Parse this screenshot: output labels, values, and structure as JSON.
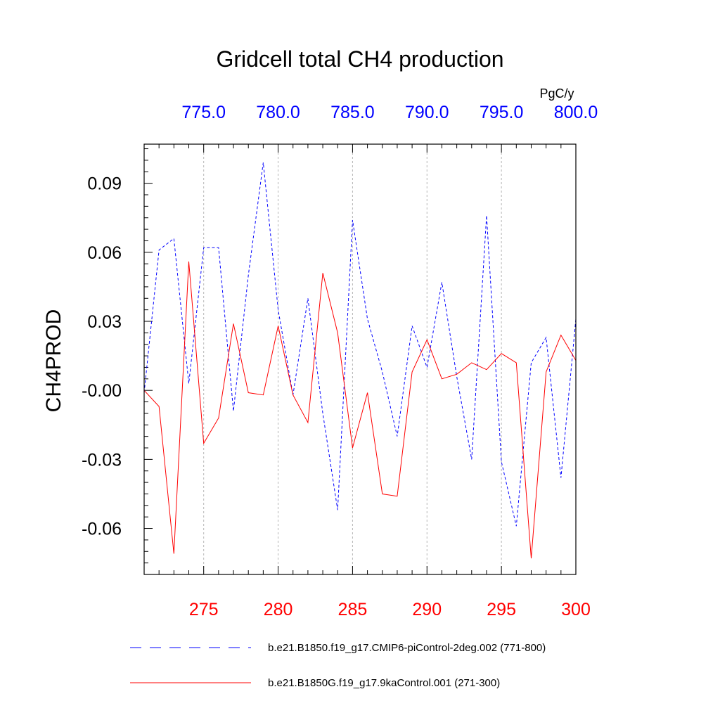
{
  "chart_data": {
    "type": "line",
    "title": "Gridcell total CH4 production",
    "ylabel": "CH4PROD",
    "units": "PgC/y",
    "ylim": [
      -0.08,
      0.107
    ],
    "y_ticks": [
      0.09,
      0.06,
      0.03,
      0.0,
      -0.03,
      -0.06
    ],
    "y_tick_labels": [
      "0.09",
      "0.06",
      "0.03",
      "-0.00",
      "-0.03",
      "-0.06"
    ],
    "y_minor_step": 0.005,
    "bottom_axis": {
      "xlim": [
        271,
        300
      ],
      "ticks": [
        275,
        280,
        285,
        290,
        295,
        300
      ],
      "tick_labels": [
        "275",
        "280",
        "285",
        "290",
        "295",
        "300"
      ],
      "color": "#ff0000"
    },
    "top_axis": {
      "xlim": [
        771,
        800
      ],
      "ticks": [
        775,
        780,
        785,
        790,
        795,
        800
      ],
      "tick_labels": [
        "775.0",
        "780.0",
        "785.0",
        "790.0",
        "795.0",
        "800.0"
      ],
      "color": "#0000ff"
    },
    "grid": "vertical dashed at major ticks",
    "series": [
      {
        "name": "b.e21.B1850.f19_g17.CMIP6-piControl-2deg.002 (771-800)",
        "axis": "top",
        "color": "#0000ff",
        "style": "dashed",
        "x": [
          771,
          772,
          773,
          774,
          775,
          776,
          777,
          778,
          779,
          780,
          781,
          782,
          783,
          784,
          785,
          786,
          787,
          788,
          789,
          790,
          791,
          792,
          793,
          794,
          795,
          796,
          797,
          798,
          799,
          800
        ],
        "values": [
          -0.001,
          0.061,
          0.066,
          0.003,
          0.062,
          0.062,
          -0.009,
          0.05,
          0.099,
          0.035,
          -0.002,
          0.04,
          -0.01,
          -0.052,
          0.074,
          0.031,
          0.008,
          -0.02,
          0.028,
          0.01,
          0.047,
          0.006,
          -0.03,
          0.076,
          -0.031,
          -0.059,
          0.012,
          0.023,
          -0.038,
          0.031
        ]
      },
      {
        "name": "b.e21.B1850G.f19_g17.9kaControl.001 (271-300)",
        "axis": "bottom",
        "color": "#ff0000",
        "style": "solid",
        "x": [
          271,
          272,
          273,
          274,
          275,
          276,
          277,
          278,
          279,
          280,
          281,
          282,
          283,
          284,
          285,
          286,
          287,
          288,
          289,
          290,
          291,
          292,
          293,
          294,
          295,
          296,
          297,
          298,
          299,
          300
        ],
        "values": [
          0.0,
          -0.007,
          -0.071,
          0.056,
          -0.023,
          -0.012,
          0.029,
          -0.001,
          -0.002,
          0.028,
          -0.002,
          -0.014,
          0.051,
          0.025,
          -0.025,
          -0.001,
          -0.045,
          -0.046,
          0.008,
          0.022,
          0.005,
          0.007,
          0.012,
          0.009,
          0.016,
          0.012,
          -0.073,
          0.008,
          0.024,
          0.013
        ]
      }
    ],
    "legend_position": "bottom"
  }
}
